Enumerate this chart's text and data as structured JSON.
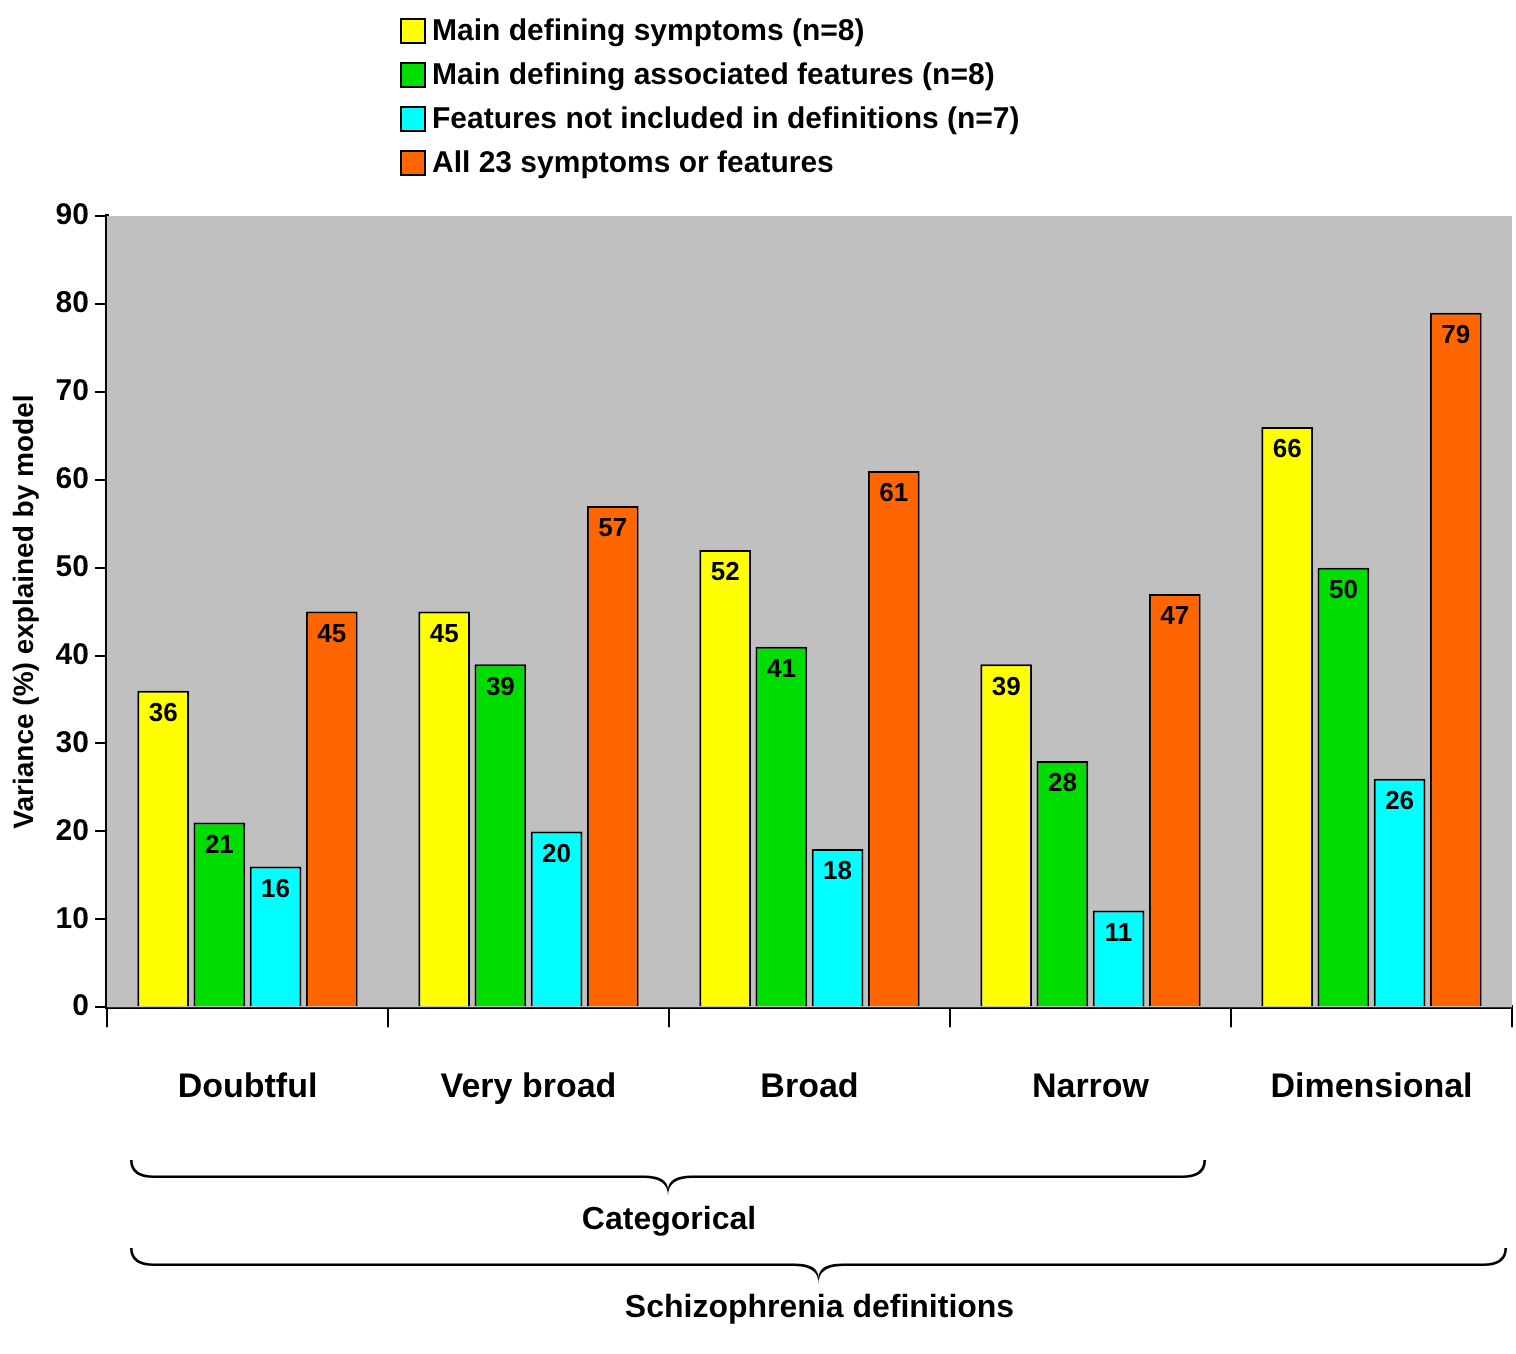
{
  "chart_data": {
    "type": "bar",
    "ylabel": "Variance (%) explained by model",
    "annotations": [
      "Categorical",
      "Schizophrenia definitions"
    ],
    "categories": [
      "Doubtful",
      "Very broad",
      "Broad",
      "Narrow",
      "Dimensional"
    ],
    "series": [
      {
        "name": "Main defining symptoms (n=8)",
        "color": "#ffff00",
        "values": [
          36,
          45,
          52,
          39,
          66
        ]
      },
      {
        "name": "Main defining associated features (n=8)",
        "color": "#00dd00",
        "values": [
          21,
          39,
          41,
          28,
          50
        ]
      },
      {
        "name": "Features not included in definitions (n=7)",
        "color": "#00ffff",
        "values": [
          16,
          20,
          18,
          11,
          26
        ]
      },
      {
        "name": "All 23 symptoms or features",
        "color": "#ff6600",
        "values": [
          45,
          57,
          61,
          47,
          79
        ]
      }
    ],
    "ylim": [
      0,
      90
    ],
    "yticks": [
      0,
      10,
      20,
      30,
      40,
      50,
      60,
      70,
      80,
      90
    ],
    "grid": false,
    "legend": "top",
    "data_labels": true
  }
}
